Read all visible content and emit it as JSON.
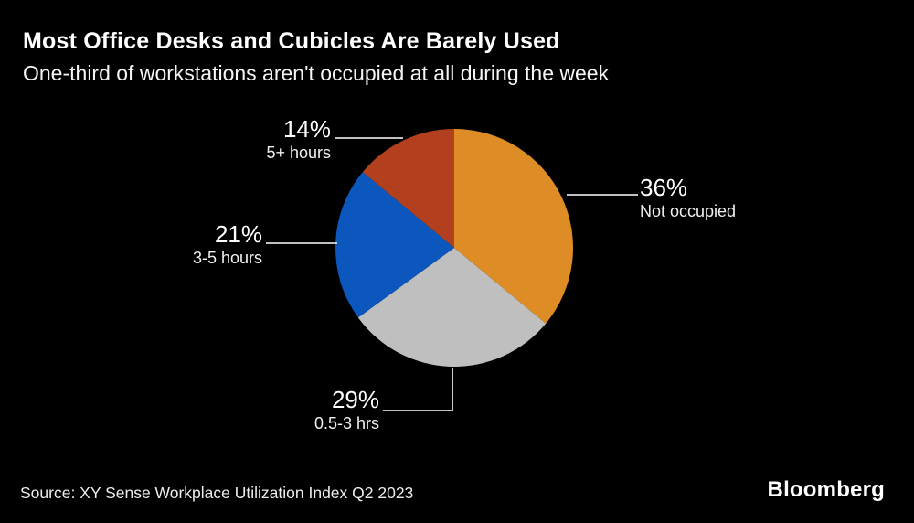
{
  "header": {
    "title": "Most Office Desks and Cubicles Are Barely Used",
    "subtitle": "One-third of workstations aren't occupied at all during the week"
  },
  "chart_data": {
    "type": "pie",
    "title": "Most Office Desks and Cubicles Are Barely Used",
    "subtitle": "One-third of workstations aren't occupied at all during the week",
    "unit": "percent of workstations",
    "start_angle": "12 o'clock",
    "direction": "clockwise",
    "legend_position": "none (outside labels with leader lines)",
    "slices": [
      {
        "label": "Not occupied",
        "pct_label": "36%",
        "value": 36,
        "color": "#DD8C26"
      },
      {
        "label": "0.5-3 hrs",
        "pct_label": "29%",
        "value": 29,
        "color": "#BFBFBF"
      },
      {
        "label": "3-5 hours",
        "pct_label": "21%",
        "value": 21,
        "color": "#0B57BE"
      },
      {
        "label": "5+ hours",
        "pct_label": "14%",
        "value": 14,
        "color": "#B2401E"
      }
    ]
  },
  "footer": {
    "source": "Source: XY Sense Workplace Utilization Index Q2 2023",
    "brand": "Bloomberg"
  },
  "colors": {
    "background": "#000000",
    "text": "#FFFFFF",
    "leader_line": "#FFFFFF"
  }
}
